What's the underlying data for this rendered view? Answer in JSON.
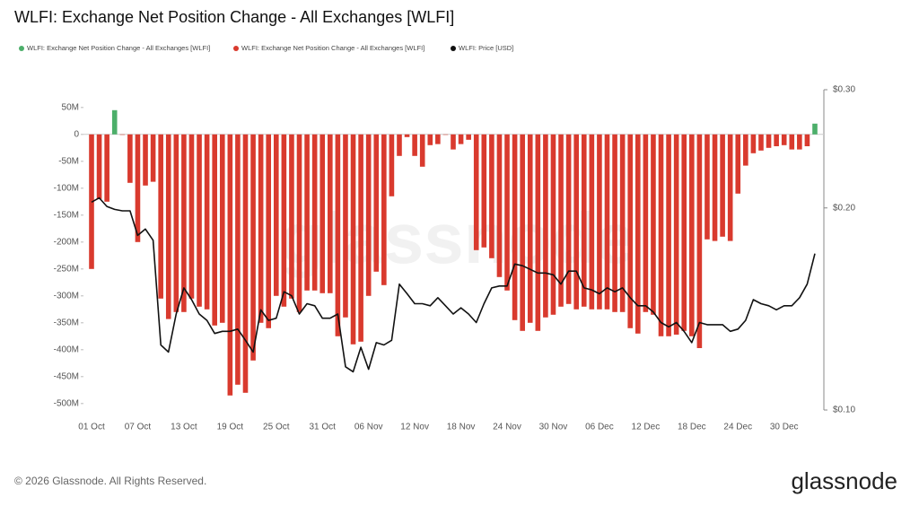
{
  "chart_data": {
    "type": "bar",
    "title": "WLFI: Exchange Net Position Change - All Exchanges [WLFI]",
    "categories": [
      "01 Oct",
      null,
      null,
      null,
      null,
      null,
      "07 Oct",
      null,
      null,
      null,
      null,
      null,
      "13 Oct",
      null,
      null,
      null,
      null,
      null,
      "19 Oct",
      null,
      null,
      null,
      null,
      null,
      "25 Oct",
      null,
      null,
      null,
      null,
      null,
      "31 Oct",
      null,
      null,
      null,
      null,
      null,
      "06 Nov",
      null,
      null,
      null,
      null,
      null,
      "12 Nov",
      null,
      null,
      null,
      null,
      null,
      "18 Nov",
      null,
      null,
      null,
      null,
      null,
      "24 Nov",
      null,
      null,
      null,
      null,
      null,
      "30 Nov",
      null,
      null,
      null,
      null,
      null,
      "06 Dec",
      null,
      null,
      null,
      null,
      null,
      "12 Dec",
      null,
      null,
      null,
      null,
      null,
      "18 Dec",
      null,
      null,
      null,
      null,
      null,
      "24 Dec",
      null,
      null,
      null,
      null,
      null,
      "30 Dec",
      null,
      null,
      null,
      null
    ],
    "series": [
      {
        "name": "WLFI: Exchange Net Position Change - All Exchanges [WLFI]",
        "color": "#4caf6a",
        "values": [
          null,
          null,
          null,
          45,
          null,
          null,
          null,
          null,
          null,
          null,
          null,
          null,
          null,
          null,
          null,
          null,
          null,
          null,
          null,
          null,
          null,
          null,
          null,
          null,
          null,
          null,
          null,
          null,
          null,
          null,
          null,
          null,
          null,
          null,
          null,
          null,
          null,
          null,
          null,
          null,
          null,
          null,
          null,
          null,
          null,
          null,
          null,
          null,
          null,
          null,
          null,
          null,
          null,
          null,
          null,
          null,
          null,
          null,
          null,
          null,
          null,
          null,
          null,
          null,
          null,
          null,
          null,
          null,
          null,
          null,
          null,
          null,
          null,
          null,
          null,
          null,
          null,
          null,
          null,
          null,
          null,
          null,
          null,
          null,
          null,
          null,
          null,
          null,
          null,
          null,
          null,
          null,
          null,
          null,
          20
        ]
      },
      {
        "name": "WLFI: Exchange Net Position Change - All Exchanges [WLFI]",
        "color": "#d93a2e",
        "values": [
          -250,
          -120,
          -125,
          null,
          0,
          -90,
          -200,
          -95,
          -88,
          -305,
          -343,
          -330,
          -330,
          -305,
          -320,
          -325,
          -355,
          -350,
          -485,
          -465,
          -480,
          -420,
          -350,
          -360,
          -300,
          -320,
          -305,
          -330,
          -290,
          -290,
          -295,
          -295,
          -375,
          -340,
          -390,
          -385,
          -300,
          -255,
          -280,
          -115,
          -40,
          -5,
          -40,
          -60,
          -20,
          -18,
          0,
          -28,
          -18,
          -10,
          -215,
          -210,
          -230,
          -265,
          -290,
          -345,
          -365,
          -350,
          -365,
          -340,
          -335,
          -320,
          -315,
          -325,
          -320,
          -325,
          -325,
          -325,
          -330,
          -330,
          -360,
          -370,
          -330,
          -335,
          -375,
          -375,
          -372,
          -365,
          -375,
          -397,
          -195,
          -198,
          -190,
          -198,
          -110,
          -58,
          -35,
          -30,
          -25,
          -22,
          -20,
          -28,
          -28,
          -22,
          null
        ]
      },
      {
        "name": "WLFI: Price [USD]",
        "color": "#111111",
        "type": "line",
        "axis": "y2",
        "values": [
          0.204,
          0.207,
          0.201,
          0.199,
          0.198,
          0.198,
          0.182,
          0.186,
          0.179,
          0.125,
          0.122,
          0.139,
          0.152,
          0.146,
          0.139,
          0.136,
          0.13,
          0.131,
          0.131,
          0.132,
          0.127,
          0.122,
          0.141,
          0.136,
          0.137,
          0.15,
          0.148,
          0.139,
          0.144,
          0.143,
          0.137,
          0.137,
          0.139,
          0.116,
          0.114,
          0.124,
          0.115,
          0.126,
          0.125,
          0.127,
          0.154,
          0.149,
          0.144,
          0.144,
          0.143,
          0.147,
          0.143,
          0.139,
          0.142,
          0.139,
          0.135,
          0.144,
          0.152,
          0.153,
          0.153,
          0.165,
          0.164,
          0.162,
          0.16,
          0.16,
          0.159,
          0.154,
          0.161,
          0.161,
          0.152,
          0.151,
          0.149,
          0.152,
          0.15,
          0.152,
          0.147,
          0.143,
          0.143,
          0.14,
          0.135,
          0.133,
          0.135,
          0.131,
          0.126,
          0.135,
          0.134,
          0.134,
          0.134,
          0.131,
          0.132,
          0.136,
          0.146,
          0.144,
          0.143,
          0.141,
          0.143,
          0.143,
          0.147,
          0.154,
          0.171
        ]
      }
    ],
    "ylim": [
      -512,
      83
    ],
    "yticks": [
      {
        "value": 50,
        "label": "50M"
      },
      0,
      {
        "value": -50,
        "label": "-50M"
      },
      {
        "value": -100,
        "label": "-100M"
      },
      {
        "value": -150,
        "label": "-150M"
      },
      {
        "value": -200,
        "label": "-200M"
      },
      {
        "value": -250,
        "label": "-250M"
      },
      {
        "value": -300,
        "label": "-300M"
      },
      {
        "value": -350,
        "label": "-350M"
      },
      {
        "value": -400,
        "label": "-400M"
      },
      {
        "value": -450,
        "label": "-450M"
      },
      {
        "value": -500,
        "label": "-500M"
      }
    ],
    "y2lim": [
      0.1,
      0.3
    ],
    "y2ticks": [
      {
        "value": 0.3,
        "label": "$0.30"
      },
      {
        "value": 0.2,
        "label": "$0.20"
      },
      {
        "value": 0.1,
        "label": "$0.10"
      }
    ],
    "y2log": true,
    "watermark": "glassnode"
  },
  "footer": {
    "copyright": "© 2026 Glassnode. All Rights Reserved.",
    "logo": "glassnode"
  }
}
